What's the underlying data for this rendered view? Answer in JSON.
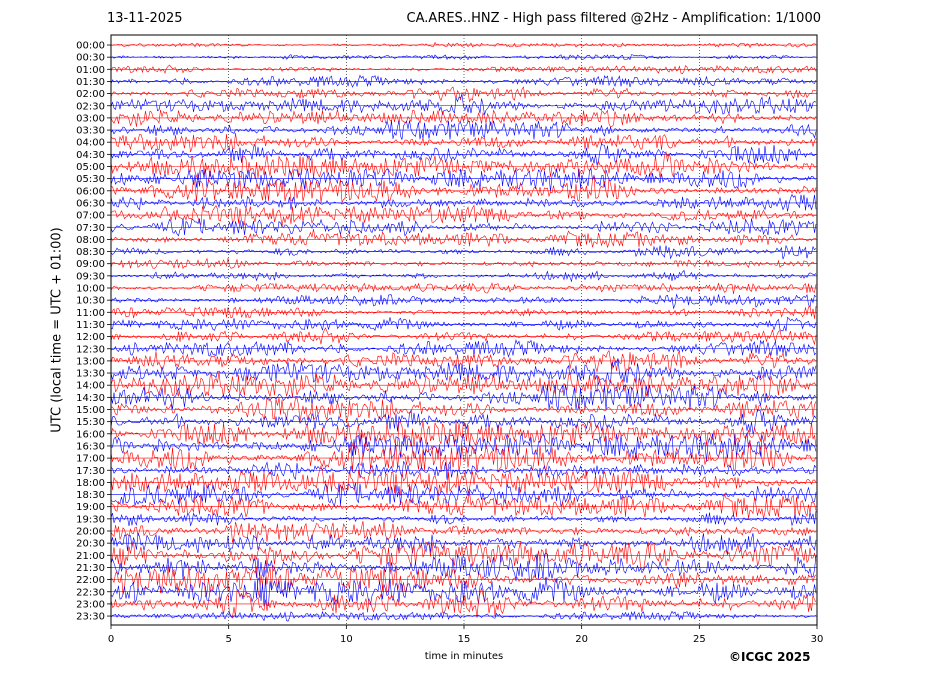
{
  "header": {
    "date": "13-11-2025",
    "title": "CA.ARES..HNZ - High pass filtered @2Hz - Amplification: 1/1000"
  },
  "footer": {
    "credit": "©ICGC 2025"
  },
  "chart_data": {
    "type": "line",
    "title": "CA.ARES..HNZ - High pass filtered @2Hz - Amplification: 1/1000",
    "xlabel": "time in minutes",
    "ylabel": "UTC (local time = UTC + 01:00)",
    "xlim": [
      0,
      30
    ],
    "x_ticks": [
      "0",
      "5",
      "10",
      "15",
      "20",
      "25",
      "30"
    ],
    "grid": {
      "vertical_dotted": true,
      "x": [
        5,
        10,
        15,
        20,
        25
      ]
    },
    "y_direction": "top-to-bottom",
    "trace_colors": [
      "#ff0000",
      "#0000ff"
    ],
    "rows": [
      "00:00",
      "00:30",
      "01:00",
      "01:30",
      "02:00",
      "02:30",
      "03:00",
      "03:30",
      "04:00",
      "04:30",
      "05:00",
      "05:30",
      "06:00",
      "06:30",
      "07:00",
      "07:30",
      "08:00",
      "08:30",
      "09:00",
      "09:30",
      "10:00",
      "10:30",
      "11:00",
      "11:30",
      "12:00",
      "12:30",
      "13:00",
      "13:30",
      "14:00",
      "14:30",
      "15:00",
      "15:30",
      "16:00",
      "16:30",
      "17:00",
      "17:30",
      "18:00",
      "18:30",
      "19:00",
      "19:30",
      "20:00",
      "20:30",
      "21:00",
      "21:30",
      "22:00",
      "22:30",
      "23:00",
      "23:30"
    ],
    "amplitude_level": [
      0.0,
      0.05,
      0.15,
      0.3,
      0.4,
      0.55,
      0.55,
      0.6,
      0.65,
      0.7,
      0.75,
      0.7,
      0.75,
      0.65,
      0.6,
      0.55,
      0.45,
      0.4,
      0.35,
      0.3,
      0.25,
      0.3,
      0.35,
      0.4,
      0.45,
      0.5,
      0.7,
      0.8,
      0.85,
      0.85,
      0.85,
      0.85,
      0.85,
      0.9,
      0.95,
      0.95,
      0.85,
      0.8,
      0.75,
      0.6,
      0.7,
      0.85,
      1.0,
      1.0,
      1.0,
      1.0,
      0.95,
      0.2
    ]
  }
}
